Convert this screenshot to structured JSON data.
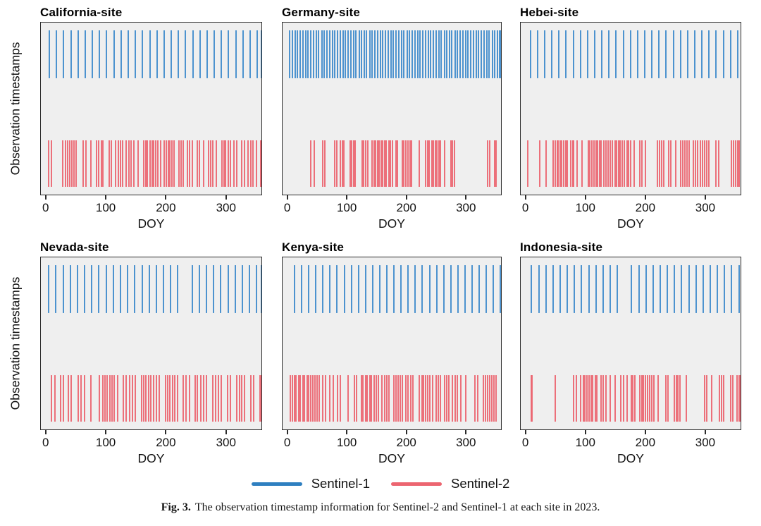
{
  "figure": {
    "caption_label": "Fig. 3.",
    "caption_text": "The observation timestamp information for Sentinel-2 and Sentinel-1 at each site in 2023."
  },
  "axis": {
    "xlabel": "DOY",
    "ylabel": "Observation timestamps",
    "xticks": [
      0,
      100,
      200,
      300
    ],
    "xrange": [
      -9,
      360
    ]
  },
  "legend": {
    "items": [
      {
        "label": "Sentinel-1",
        "color": "#2E7FC0"
      },
      {
        "label": "Sentinel-2",
        "color": "#EC6570"
      }
    ]
  },
  "colors": {
    "sentinel1": "#3F8BCC",
    "sentinel2": "#EC6570",
    "panel_background": "#EFEFEF",
    "panel_border": "#2B2B2B"
  },
  "chart_data": {
    "type": "rug",
    "title": "Observation timestamps of Sentinel-1 and Sentinel-2 per site, 2023",
    "xlabel": "DOY",
    "ylabel": "Observation timestamps",
    "xlim": [
      -9,
      360
    ],
    "legend_position": "bottom-center",
    "grid": false,
    "panels": [
      {
        "title": "California-site",
        "sentinel1_doy": [
          4,
          16,
          28,
          40,
          52,
          64,
          76,
          88,
          100,
          112,
          124,
          136,
          148,
          160,
          172,
          184,
          196,
          208,
          220,
          232,
          244,
          256,
          268,
          280,
          292,
          304,
          316,
          328,
          340,
          352,
          364
        ],
        "sentinel2_doy": [
          3,
          8,
          26,
          31,
          35,
          38,
          42,
          45,
          49,
          60,
          65,
          73,
          83,
          87,
          91,
          94,
          104,
          108,
          115,
          119,
          123,
          126,
          133,
          137,
          141,
          145,
          153,
          162,
          165,
          168,
          172,
          176,
          179,
          182,
          186,
          190,
          196,
          200,
          203,
          206,
          209,
          213,
          221,
          225,
          228,
          235,
          239,
          243,
          251,
          255,
          262,
          270,
          274,
          277,
          283,
          293,
          296,
          299,
          303,
          307,
          313,
          317,
          326,
          330,
          336,
          341,
          345,
          350,
          358,
          361
        ]
      },
      {
        "title": "Germany-site",
        "sentinel1_doy": [
          2,
          6,
          11,
          15,
          20,
          24,
          29,
          33,
          38,
          42,
          47,
          51,
          56,
          60,
          65,
          69,
          74,
          78,
          83,
          87,
          92,
          96,
          101,
          105,
          110,
          114,
          119,
          123,
          128,
          132,
          137,
          141,
          146,
          150,
          155,
          159,
          164,
          168,
          173,
          177,
          182,
          186,
          191,
          195,
          200,
          204,
          209,
          213,
          218,
          222,
          227,
          231,
          236,
          240,
          245,
          249,
          254,
          258,
          263,
          267,
          272,
          276,
          281,
          285,
          290,
          294,
          299,
          303,
          308,
          312,
          317,
          321,
          326,
          330,
          335,
          339,
          344,
          348,
          353,
          357,
          362
        ],
        "sentinel2_doy": [
          38,
          43,
          58,
          61,
          78,
          82,
          87,
          91,
          93,
          104,
          107,
          110,
          113,
          124,
          127,
          130,
          134,
          141,
          144,
          147,
          150,
          153,
          156,
          159,
          162,
          165,
          169,
          172,
          175,
          181,
          184,
          192,
          195,
          198,
          202,
          205,
          208,
          221,
          231,
          235,
          237,
          242,
          245,
          248,
          251,
          254,
          257,
          263,
          274,
          277,
          280,
          336,
          340,
          348,
          351
        ]
      },
      {
        "title": "Hebei-site",
        "sentinel1_doy": [
          6,
          18,
          30,
          42,
          54,
          66,
          78,
          90,
          102,
          114,
          126,
          138,
          150,
          162,
          174,
          186,
          198,
          210,
          222,
          234,
          246,
          258,
          270,
          282,
          294,
          306,
          318,
          330,
          342,
          354
        ],
        "sentinel2_doy": [
          2,
          22,
          32,
          44,
          48,
          51,
          53,
          56,
          59,
          62,
          65,
          68,
          74,
          77,
          79,
          84,
          93,
          103,
          106,
          109,
          113,
          116,
          119,
          122,
          125,
          129,
          133,
          137,
          140,
          144,
          148,
          151,
          154,
          157,
          160,
          164,
          168,
          171,
          174,
          180,
          190,
          193,
          199,
          219,
          223,
          226,
          230,
          238,
          242,
          250,
          258,
          262,
          265,
          269,
          273,
          279,
          283,
          287,
          291,
          295,
          298,
          302,
          306,
          318,
          322,
          343,
          347,
          351,
          354,
          357
        ]
      },
      {
        "title": "Nevada-site",
        "sentinel1_doy": [
          3,
          15,
          27,
          39,
          51,
          63,
          75,
          87,
          99,
          111,
          123,
          135,
          147,
          159,
          171,
          183,
          195,
          207,
          219,
          243,
          255,
          267,
          279,
          291,
          303,
          315,
          327,
          339,
          351,
          363
        ],
        "sentinel2_doy": [
          8,
          13,
          23,
          27,
          36,
          41,
          52,
          57,
          63,
          73,
          88,
          93,
          97,
          101,
          105,
          109,
          113,
          118,
          128,
          133,
          138,
          143,
          148,
          158,
          162,
          166,
          170,
          174,
          178,
          183,
          188,
          198,
          202,
          206,
          210,
          214,
          218,
          228,
          233,
          238,
          248,
          252,
          258,
          262,
          267,
          277,
          282,
          287,
          292,
          302,
          307,
          317,
          322,
          326,
          331,
          341,
          346,
          356,
          361
        ]
      },
      {
        "title": "Kenya-site",
        "sentinel1_doy": [
          10,
          22,
          34,
          46,
          58,
          70,
          82,
          94,
          106,
          118,
          130,
          142,
          154,
          166,
          178,
          190,
          202,
          214,
          226,
          238,
          250,
          262,
          274,
          286,
          298,
          310,
          322,
          334,
          346,
          358
        ],
        "sentinel2_doy": [
          3,
          6,
          10,
          13,
          17,
          20,
          24,
          27,
          31,
          34,
          38,
          41,
          45,
          48,
          52,
          58,
          63,
          70,
          75,
          83,
          88,
          101,
          111,
          115,
          123,
          126,
          130,
          133,
          137,
          140,
          144,
          148,
          152,
          158,
          162,
          166,
          170,
          178,
          181,
          185,
          188,
          192,
          198,
          202,
          206,
          210,
          221,
          225,
          228,
          232,
          235,
          239,
          243,
          249,
          253,
          257,
          263,
          267,
          271,
          277,
          281,
          285,
          291,
          299,
          315,
          319,
          329,
          333,
          336,
          340,
          343,
          347,
          350
        ]
      },
      {
        "title": "Indonesia-site",
        "sentinel1_doy": [
          8,
          20,
          32,
          44,
          56,
          68,
          80,
          92,
          104,
          116,
          128,
          140,
          152,
          176,
          188,
          200,
          212,
          224,
          236,
          248,
          260,
          272,
          284,
          296,
          308,
          320,
          332,
          344,
          356
        ],
        "sentinel2_doy": [
          7,
          9,
          48,
          78,
          83,
          90,
          95,
          98,
          101,
          104,
          108,
          111,
          115,
          118,
          125,
          128,
          133,
          140,
          148,
          158,
          162,
          168,
          175,
          178,
          181,
          190,
          193,
          196,
          199,
          203,
          206,
          210,
          213,
          220,
          233,
          237,
          248,
          251,
          254,
          257,
          268,
          298,
          302,
          310,
          323,
          327,
          330,
          342,
          346,
          353,
          356,
          360,
          364
        ]
      }
    ]
  }
}
